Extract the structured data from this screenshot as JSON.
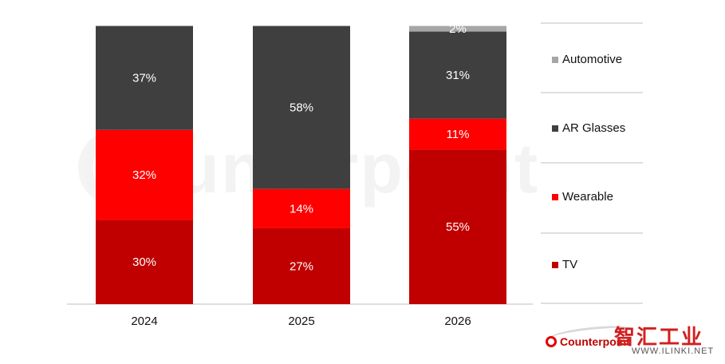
{
  "chart_data": {
    "type": "bar",
    "stacked": true,
    "categories": [
      "2024",
      "2025",
      "2026"
    ],
    "series": [
      {
        "name": "TV",
        "values": [
          30,
          27,
          55
        ],
        "color": "#c00000"
      },
      {
        "name": "Wearable",
        "values": [
          32,
          14,
          11
        ],
        "color": "#ff0000"
      },
      {
        "name": "AR Glasses",
        "values": [
          37,
          58,
          31
        ],
        "color": "#3f3f3f"
      },
      {
        "name": "Automotive",
        "values": [
          0,
          0,
          2
        ],
        "color": "#a6a6a6"
      }
    ],
    "value_suffix": "%",
    "ylim": [
      0,
      100
    ],
    "grid": false,
    "legend_position": "right",
    "legend_order": [
      "Automotive",
      "AR Glasses",
      "Wearable",
      "TV"
    ]
  },
  "watermark": {
    "text": "Counterpoint"
  },
  "logos": {
    "counterpoint": "Counterpoint",
    "zhihui": "智汇工业",
    "zhihui_url": "WWW.ILINKI.NET"
  }
}
